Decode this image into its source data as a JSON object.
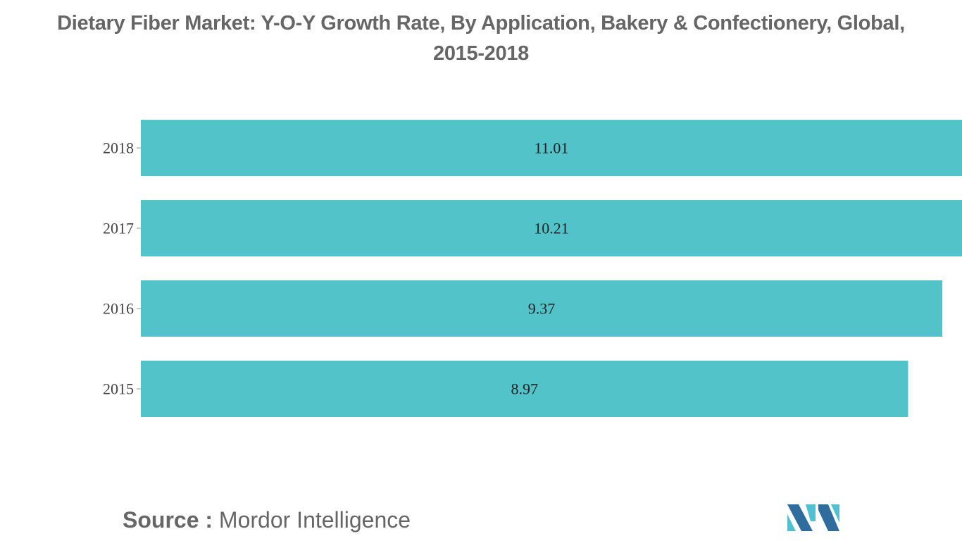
{
  "chart_data": {
    "type": "bar",
    "orientation": "horizontal",
    "title_line1": "Dietary Fiber Market: Y-O-Y Growth Rate, By Application, Bakery & Confectionery, Global,",
    "title_line2": "2015-2018",
    "categories": [
      "2018",
      "2017",
      "2016",
      "2015"
    ],
    "values": [
      11.01,
      10.21,
      9.37,
      8.97
    ],
    "value_labels": [
      "11.01",
      "10.21",
      "9.37",
      "8.97"
    ],
    "xlabel": "",
    "ylabel": "",
    "xlim": [
      0,
      9.6
    ],
    "grid": false,
    "legend": "none",
    "bar_color": "#51c3c9"
  },
  "source": {
    "label": "Source :",
    "text": "Mordor Intelligence"
  },
  "colors": {
    "title": "#666666",
    "axis_text": "#444444",
    "value_text": "#222222",
    "logo_dark": "#2f6d9e",
    "logo_light": "#4fc1d0"
  }
}
